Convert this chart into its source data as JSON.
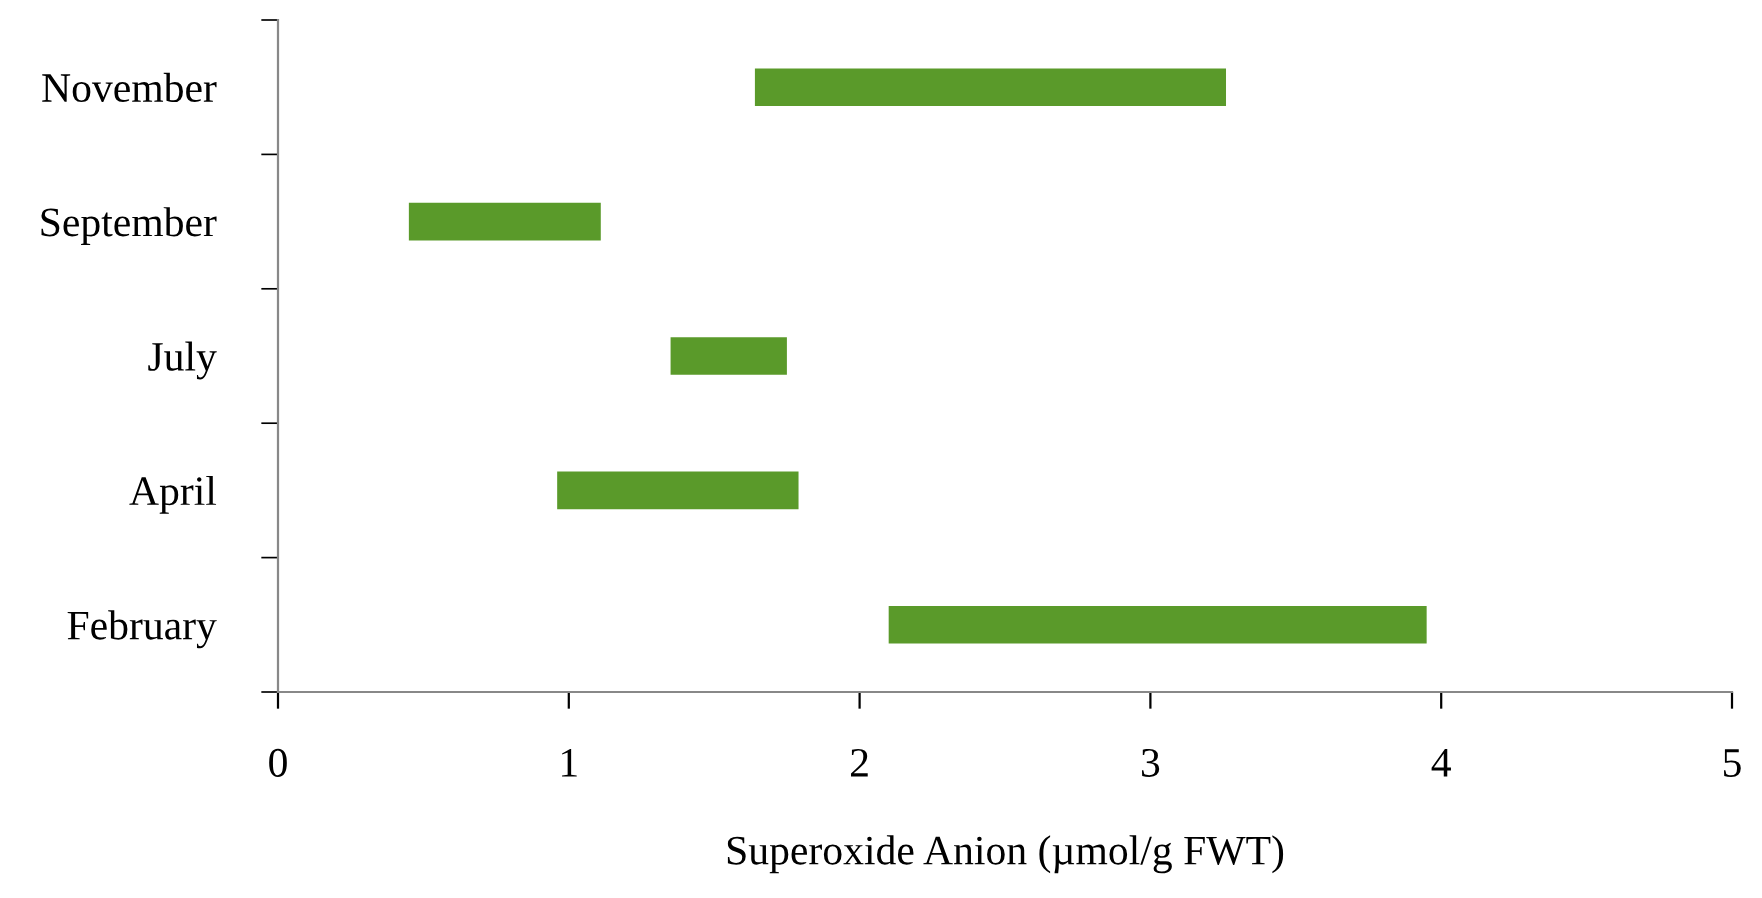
{
  "chart_data": {
    "type": "bar",
    "orientation": "horizontal",
    "xlabel": "Superoxide Anion (µmol/g FWT)",
    "categories": [
      "November",
      "September",
      "July",
      "April",
      "February"
    ],
    "base": [
      1.64,
      0.45,
      1.35,
      0.96,
      2.1
    ],
    "values": [
      1.62,
      0.66,
      0.4,
      0.83,
      1.85
    ],
    "color": "#5a9a2a",
    "xlim": [
      0,
      5
    ],
    "xticks": [
      0,
      1,
      2,
      3,
      4,
      5
    ],
    "grid": false,
    "legend": false
  }
}
